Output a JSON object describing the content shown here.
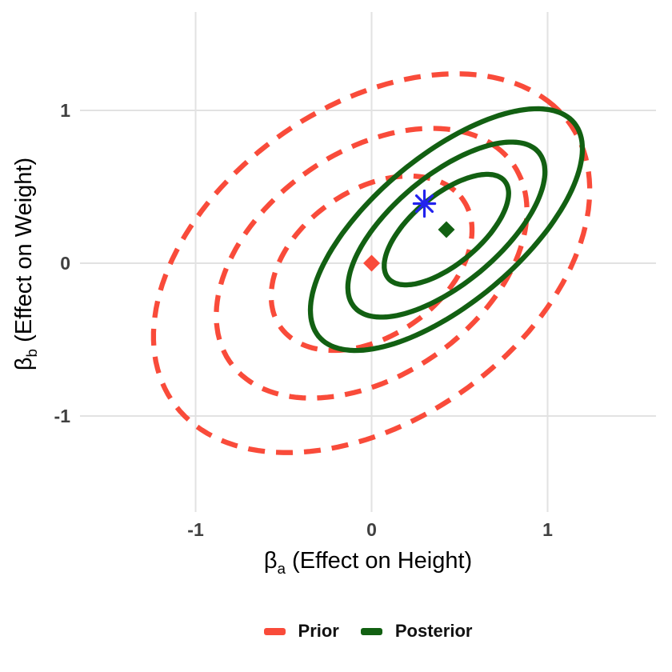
{
  "figure": {
    "background": "#ffffff",
    "description": "Prior vs posterior bivariate confidence-ellipse plot"
  },
  "colors": {
    "prior": "#F94B3A",
    "posterior": "#126012",
    "true_point": "#2222EE",
    "gridline": "#E2E2E2",
    "tick_text": "#404040",
    "axis_title_text": "#000000"
  },
  "axes": {
    "x": {
      "title_symbol": "β",
      "title_sub": "a",
      "title_rest": " (Effect on Height)",
      "ticks": [
        "-1",
        "0",
        "1"
      ]
    },
    "y": {
      "title_symbol": "β",
      "title_sub": "b",
      "title_rest": " (Effect on Weight)",
      "ticks": [
        "-1",
        "0",
        "1"
      ]
    }
  },
  "legend": {
    "items": [
      {
        "label": "Prior",
        "color": "#F94B3A",
        "dashed": true
      },
      {
        "label": "Posterior",
        "color": "#126012",
        "dashed": false
      }
    ]
  },
  "chart_data": {
    "type": "contour-ellipses",
    "title": "",
    "xlabel": "βa (Effect on Height)",
    "ylabel": "βb (Effect on Weight)",
    "xlim": [
      -1.657,
      1.616
    ],
    "ylim": [
      -1.628,
      1.644
    ],
    "x_ticks": [
      -1,
      0,
      1
    ],
    "y_ticks": [
      -1,
      0,
      1
    ],
    "grid": true,
    "legend_position": "bottom",
    "series": [
      {
        "name": "Prior",
        "style": "dashed",
        "color": "#F94B3A",
        "line_width": 6.3,
        "dash_pattern": [
          21,
          14
        ],
        "center": [
          0,
          0
        ],
        "angle_deg": 45,
        "contours": [
          {
            "a": 0.67,
            "b": 0.45
          },
          {
            "a": 1.04,
            "b": 0.69
          },
          {
            "a": 1.46,
            "b": 0.97
          }
        ]
      },
      {
        "name": "Posterior",
        "style": "solid",
        "color": "#126012",
        "line_width": 6.3,
        "dash_pattern": null,
        "center": [
          0.425,
          0.22
        ],
        "angle_deg": 46,
        "contours": [
          {
            "a": 0.46,
            "b": 0.21
          },
          {
            "a": 0.73,
            "b": 0.33
          },
          {
            "a": 1.01,
            "b": 0.45
          }
        ]
      }
    ],
    "points": [
      {
        "name": "prior-mean",
        "marker": "diamond",
        "color": "#F94B3A",
        "x": 0,
        "y": 0,
        "size": 21
      },
      {
        "name": "posterior-mean",
        "marker": "diamond",
        "color": "#126012",
        "x": 0.425,
        "y": 0.22,
        "size": 21
      },
      {
        "name": "true-value",
        "marker": "asterisk",
        "color": "#2222EE",
        "x": 0.3,
        "y": 0.39,
        "size": 32
      }
    ]
  }
}
